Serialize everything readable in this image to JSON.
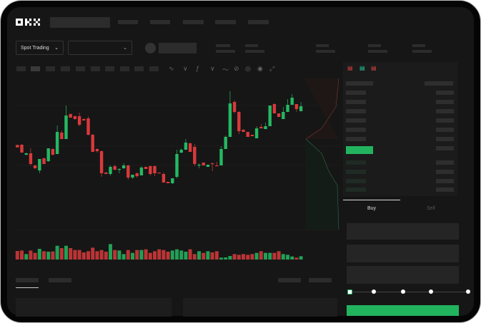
{
  "header": {
    "logo": "OKX",
    "nav_items": 5
  },
  "market": {
    "mode_selector": "Spot Trading"
  },
  "toolbar": {
    "icons": [
      "indicator-icon",
      "indicator-icon",
      "formula-icon",
      "line-tool-icon",
      "ruler-icon",
      "settings-icon",
      "camera-icon",
      "fullscreen-icon"
    ]
  },
  "orderbook": {
    "layout_icons": [
      "both-sides-icon",
      "buy-side-icon",
      "sell-side-icon"
    ]
  },
  "trade": {
    "tabs": [
      "Buy",
      "Sell"
    ],
    "active_tab": "Buy",
    "leverage_slider_value": 0,
    "submit_color": "#22b35e"
  },
  "colors": {
    "up": "#25b862",
    "down": "#d9393b",
    "background": "#161616"
  },
  "chart_data": {
    "type": "candlestick",
    "grid": true,
    "ylim": [
      0,
      150
    ],
    "ohlc": [
      [
        66.7,
        67,
        63,
        63.3
      ],
      [
        67,
        68,
        56,
        56
      ],
      [
        53,
        56,
        52,
        55
      ],
      [
        55,
        62,
        38,
        40
      ],
      [
        38,
        39,
        33,
        34
      ],
      [
        31,
        47,
        27,
        47
      ],
      [
        48,
        49,
        40,
        40
      ],
      [
        44,
        62,
        43,
        62
      ],
      [
        61,
        62,
        52,
        53
      ],
      [
        54,
        94,
        54,
        85
      ],
      [
        84,
        87,
        75,
        75
      ],
      [
        75,
        122,
        75,
        108
      ],
      [
        110,
        111,
        105,
        105
      ],
      [
        107,
        108,
        102,
        103
      ],
      [
        107,
        112,
        93,
        95
      ],
      [
        103,
        104,
        101,
        101
      ],
      [
        104,
        107,
        80,
        81
      ],
      [
        81,
        82,
        57,
        57
      ],
      [
        61,
        62,
        56,
        58
      ],
      [
        58,
        59,
        22,
        27
      ],
      [
        28,
        29,
        26,
        26
      ],
      [
        26,
        38,
        24,
        36
      ],
      [
        37,
        39,
        31,
        32
      ],
      [
        32,
        34,
        27,
        33
      ],
      [
        34,
        41,
        33,
        38
      ],
      [
        38,
        39,
        18,
        21
      ],
      [
        21,
        25,
        19,
        25
      ],
      [
        27,
        28,
        21,
        23
      ],
      [
        24,
        37,
        24,
        35
      ],
      [
        36,
        36,
        33,
        33
      ],
      [
        37,
        38,
        24,
        26
      ],
      [
        37,
        38,
        23,
        27
      ],
      [
        28,
        28,
        27,
        27
      ],
      [
        26,
        28,
        14,
        14
      ],
      [
        15,
        15,
        13,
        13
      ],
      [
        13,
        20,
        12,
        20
      ],
      [
        22,
        60,
        20,
        54
      ],
      [
        56,
        62,
        55,
        60
      ],
      [
        60,
        75,
        60,
        70
      ],
      [
        69,
        70,
        57,
        57
      ],
      [
        64,
        68,
        37,
        40
      ],
      [
        38,
        41,
        34,
        39
      ],
      [
        42,
        42,
        38,
        38
      ],
      [
        36,
        39,
        36,
        39
      ],
      [
        41,
        42,
        30,
        40
      ],
      [
        38,
        43,
        37,
        37
      ],
      [
        38,
        65,
        38,
        61
      ],
      [
        61,
        80,
        61,
        78
      ],
      [
        78,
        142,
        78,
        125
      ],
      [
        127,
        129,
        111,
        113
      ],
      [
        113,
        114,
        82,
        86
      ],
      [
        88,
        89,
        85,
        85
      ],
      [
        85,
        85,
        78,
        78
      ],
      [
        81,
        81,
        79,
        79
      ],
      [
        76,
        93,
        76,
        90
      ],
      [
        92,
        96,
        90,
        90
      ],
      [
        89,
        98,
        89,
        93
      ],
      [
        93,
        122,
        93,
        122
      ],
      [
        124,
        125,
        111,
        111
      ],
      [
        111,
        111,
        106,
        106
      ],
      [
        103,
        120,
        103,
        113
      ],
      [
        113,
        131,
        113,
        123
      ],
      [
        123,
        138,
        123,
        133
      ],
      [
        124,
        124,
        113,
        117
      ],
      [
        114,
        127,
        114,
        121
      ]
    ],
    "volume": [
      36,
      38,
      23,
      38,
      28,
      45,
      35,
      33,
      34,
      58,
      48,
      58,
      48,
      40,
      40,
      30,
      35,
      50,
      35,
      40,
      33,
      65,
      40,
      38,
      23,
      40,
      28,
      40,
      40,
      43,
      28,
      35,
      43,
      40,
      33,
      38,
      43,
      38,
      33,
      43,
      23,
      35,
      28,
      35,
      30,
      35,
      8,
      9,
      15,
      23,
      20,
      23,
      20,
      23,
      28,
      35,
      28,
      28,
      28,
      35,
      23,
      20,
      13,
      8,
      14
    ]
  }
}
